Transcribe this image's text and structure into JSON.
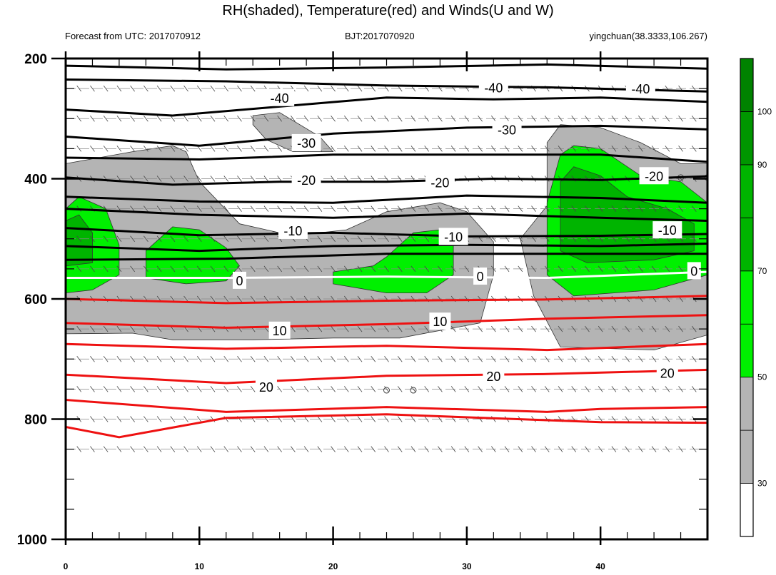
{
  "header": {
    "title": "RH(shaded), Temperature(red) and Winds(U and W)",
    "forecast": "Forecast from UTC: 2017070912",
    "bjt": "BJT:2017070920",
    "station": "yingchuan(38.3333,106.267)"
  },
  "chart_data": {
    "type": "heatmap",
    "title": "RH(shaded), Temperature(red) and Winds(U and W)",
    "xlim": [
      0,
      48
    ],
    "ylim": [
      200,
      1000
    ],
    "x_ticks": [
      0,
      10,
      20,
      30,
      40
    ],
    "y_ticks": [
      200,
      400,
      600,
      800,
      1000
    ],
    "colorbar": {
      "labels": [
        30,
        50,
        70,
        90,
        100
      ],
      "levels": [
        "<30",
        "30-40",
        "40-50",
        "50-60",
        "60-70",
        "70-80",
        "80-90",
        "90-95",
        "95-100"
      ],
      "colors": [
        "#ffffff",
        "#b4b4b4",
        "#b4b4b4",
        "#00f000",
        "#00f000",
        "#00b400",
        "#00b400",
        "#009600",
        "#008200"
      ]
    },
    "rh_regions": [
      {
        "level": "30-50",
        "points": [
          [
            0,
            375
          ],
          [
            5,
            355
          ],
          [
            8,
            345
          ],
          [
            9,
            355
          ],
          [
            10,
            405
          ],
          [
            13,
            475
          ],
          [
            17,
            495
          ],
          [
            21,
            485
          ],
          [
            24,
            455
          ],
          [
            28,
            440
          ],
          [
            30,
            455
          ],
          [
            32,
            505
          ],
          [
            32,
            560
          ],
          [
            31,
            640
          ],
          [
            25,
            665
          ],
          [
            20,
            665
          ],
          [
            14,
            668
          ],
          [
            8,
            668
          ],
          [
            5,
            657
          ],
          [
            0,
            658
          ]
        ]
      },
      {
        "level": "30-50",
        "points": [
          [
            14,
            295
          ],
          [
            16,
            290
          ],
          [
            19,
            330
          ],
          [
            20,
            355
          ],
          [
            17,
            355
          ],
          [
            15,
            335
          ],
          [
            14,
            310
          ]
        ]
      },
      {
        "level": "30-50",
        "points": [
          [
            36,
            445
          ],
          [
            36,
            340
          ],
          [
            37,
            310
          ],
          [
            40,
            315
          ],
          [
            43,
            340
          ],
          [
            46,
            375
          ],
          [
            48,
            375
          ],
          [
            48,
            660
          ],
          [
            44,
            685
          ],
          [
            37,
            680
          ],
          [
            35,
            595
          ],
          [
            34,
            500
          ]
        ]
      },
      {
        "level": "50-70",
        "points": [
          [
            0,
            450
          ],
          [
            1,
            430
          ],
          [
            3,
            450
          ],
          [
            4,
            510
          ],
          [
            4,
            560
          ],
          [
            2,
            585
          ],
          [
            0,
            590
          ]
        ]
      },
      {
        "level": "50-70",
        "points": [
          [
            6,
            520
          ],
          [
            8,
            480
          ],
          [
            10,
            485
          ],
          [
            12,
            515
          ],
          [
            13,
            545
          ],
          [
            12,
            570
          ],
          [
            9,
            575
          ],
          [
            6,
            565
          ]
        ]
      },
      {
        "level": "50-70",
        "points": [
          [
            24,
            530
          ],
          [
            26,
            490
          ],
          [
            28,
            485
          ],
          [
            29,
            505
          ],
          [
            29,
            560
          ],
          [
            27,
            590
          ],
          [
            24,
            590
          ],
          [
            20,
            575
          ],
          [
            20,
            555
          ],
          [
            23,
            545
          ]
        ]
      },
      {
        "level": "50-70",
        "points": [
          [
            37,
            360
          ],
          [
            38,
            345
          ],
          [
            40,
            350
          ],
          [
            43,
            395
          ],
          [
            46,
            405
          ],
          [
            48,
            440
          ],
          [
            48,
            560
          ],
          [
            44,
            585
          ],
          [
            38,
            595
          ],
          [
            36,
            560
          ],
          [
            36,
            440
          ]
        ]
      },
      {
        "level": "70-90",
        "points": [
          [
            0,
            470
          ],
          [
            1,
            460
          ],
          [
            2,
            490
          ],
          [
            2,
            540
          ],
          [
            0,
            545
          ]
        ]
      },
      {
        "level": "70-90",
        "points": [
          [
            37,
            405
          ],
          [
            38,
            380
          ],
          [
            40,
            395
          ],
          [
            42,
            430
          ],
          [
            45,
            450
          ],
          [
            47,
            475
          ],
          [
            47,
            520
          ],
          [
            44,
            535
          ],
          [
            39,
            540
          ],
          [
            37,
            520
          ]
        ]
      }
    ],
    "isotherms": [
      {
        "value": -40,
        "label": "-40",
        "color": "black",
        "points": [
          [
            0,
            212
          ],
          [
            12,
            218
          ],
          [
            24,
            215
          ],
          [
            36,
            210
          ],
          [
            48,
            217
          ]
        ]
      },
      {
        "value": -40,
        "label": "-40",
        "color": "black",
        "points": [
          [
            0,
            235
          ],
          [
            12,
            238
          ],
          [
            24,
            245
          ],
          [
            36,
            248
          ],
          [
            48,
            255
          ]
        ]
      },
      {
        "value": -40,
        "label": "-40",
        "color": "black",
        "points": [
          [
            0,
            285
          ],
          [
            8,
            295
          ],
          [
            16,
            280
          ],
          [
            24,
            265
          ],
          [
            32,
            268
          ],
          [
            40,
            265
          ],
          [
            48,
            272
          ]
        ]
      },
      {
        "value": -30,
        "label": "-30",
        "color": "black",
        "points": [
          [
            0,
            330
          ],
          [
            10,
            345
          ],
          [
            20,
            325
          ],
          [
            30,
            315
          ],
          [
            40,
            312
          ],
          [
            48,
            318
          ]
        ]
      },
      {
        "value": -30,
        "label": "-30",
        "color": "black",
        "points": [
          [
            0,
            365
          ],
          [
            10,
            368
          ],
          [
            20,
            360
          ],
          [
            30,
            360
          ],
          [
            40,
            360
          ],
          [
            48,
            372
          ]
        ]
      },
      {
        "value": -20,
        "label": "-20",
        "color": "black",
        "points": [
          [
            0,
            398
          ],
          [
            8,
            410
          ],
          [
            16,
            405
          ],
          [
            24,
            405
          ],
          [
            32,
            400
          ],
          [
            40,
            402
          ],
          [
            48,
            396
          ]
        ]
      },
      {
        "value": -20,
        "label": "-20",
        "color": "black",
        "points": [
          [
            0,
            430
          ],
          [
            10,
            438
          ],
          [
            20,
            440
          ],
          [
            30,
            428
          ],
          [
            40,
            432
          ],
          [
            48,
            440
          ]
        ]
      },
      {
        "value": -10,
        "label": "-10",
        "color": "black",
        "points": [
          [
            0,
            450
          ],
          [
            10,
            460
          ],
          [
            20,
            465
          ],
          [
            30,
            458
          ],
          [
            40,
            465
          ],
          [
            48,
            470
          ]
        ]
      },
      {
        "value": -10,
        "label": "-10",
        "color": "black",
        "points": [
          [
            0,
            482
          ],
          [
            10,
            494
          ],
          [
            20,
            490
          ],
          [
            30,
            496
          ],
          [
            40,
            495
          ],
          [
            48,
            492
          ]
        ]
      },
      {
        "value": -10,
        "label": "-10",
        "color": "black",
        "points": [
          [
            0,
            512
          ],
          [
            10,
            520
          ],
          [
            20,
            512
          ],
          [
            30,
            510
          ],
          [
            40,
            512
          ],
          [
            48,
            508
          ]
        ]
      },
      {
        "value": -5,
        "label": "",
        "color": "black",
        "points": [
          [
            0,
            535
          ],
          [
            12,
            533
          ],
          [
            24,
            525
          ],
          [
            36,
            525
          ],
          [
            48,
            525
          ]
        ]
      },
      {
        "value": 0,
        "label": "0",
        "color": "white",
        "points": [
          [
            0,
            565
          ],
          [
            12,
            565
          ],
          [
            24,
            563
          ],
          [
            36,
            565
          ],
          [
            48,
            555
          ]
        ]
      },
      {
        "value": 5,
        "label": "",
        "color": "red",
        "points": [
          [
            0,
            600
          ],
          [
            12,
            607
          ],
          [
            24,
            603
          ],
          [
            36,
            601
          ],
          [
            48,
            595
          ]
        ]
      },
      {
        "value": 10,
        "label": "10",
        "color": "red",
        "points": [
          [
            0,
            640
          ],
          [
            12,
            648
          ],
          [
            24,
            642
          ],
          [
            36,
            633
          ],
          [
            48,
            627
          ]
        ]
      },
      {
        "value": 15,
        "label": "",
        "color": "red",
        "points": [
          [
            0,
            675
          ],
          [
            12,
            683
          ],
          [
            24,
            678
          ],
          [
            36,
            685
          ],
          [
            48,
            675
          ]
        ]
      },
      {
        "value": 20,
        "label": "20",
        "color": "red",
        "points": [
          [
            0,
            726
          ],
          [
            12,
            740
          ],
          [
            24,
            728
          ],
          [
            36,
            725
          ],
          [
            48,
            718
          ]
        ]
      },
      {
        "value": 25,
        "label": "",
        "color": "red",
        "points": [
          [
            0,
            768
          ],
          [
            12,
            788
          ],
          [
            24,
            780
          ],
          [
            36,
            788
          ],
          [
            40,
            783
          ],
          [
            48,
            780
          ]
        ]
      },
      {
        "value": 30,
        "label": "",
        "color": "red",
        "points": [
          [
            0,
            813
          ],
          [
            4,
            830
          ],
          [
            12,
            798
          ],
          [
            24,
            792
          ],
          [
            40,
            805
          ],
          [
            48,
            806
          ]
        ]
      }
    ],
    "contour_labels": [
      {
        "text": "-40",
        "x": 16,
        "y": 265
      },
      {
        "text": "-40",
        "x": 32,
        "y": 248
      },
      {
        "text": "-40",
        "x": 43,
        "y": 250
      },
      {
        "text": "-30",
        "x": 18,
        "y": 340
      },
      {
        "text": "-30",
        "x": 33,
        "y": 318
      },
      {
        "text": "-20",
        "x": 18,
        "y": 402
      },
      {
        "text": "-20",
        "x": 28,
        "y": 406
      },
      {
        "text": "-20",
        "x": 44,
        "y": 395
      },
      {
        "text": "-10",
        "x": 17,
        "y": 486
      },
      {
        "text": "-10",
        "x": 29,
        "y": 496
      },
      {
        "text": "-10",
        "x": 45,
        "y": 485
      },
      {
        "text": "0",
        "x": 13,
        "y": 569
      },
      {
        "text": "0",
        "x": 31,
        "y": 562
      },
      {
        "text": "0",
        "x": 47,
        "y": 553
      },
      {
        "text": "10",
        "x": 16,
        "y": 652
      },
      {
        "text": "10",
        "x": 28,
        "y": 637
      },
      {
        "text": "20",
        "x": 15,
        "y": 746
      },
      {
        "text": "20",
        "x": 32,
        "y": 728
      },
      {
        "text": "20",
        "x": 45,
        "y": 723
      }
    ],
    "wind_levels": [
      250,
      300,
      350,
      400,
      450,
      500,
      550,
      600,
      650,
      700,
      750,
      800,
      850
    ],
    "calm_points": [
      [
        24,
        752
      ],
      [
        26,
        752
      ],
      [
        46,
        398
      ],
      [
        48,
        398
      ]
    ]
  }
}
